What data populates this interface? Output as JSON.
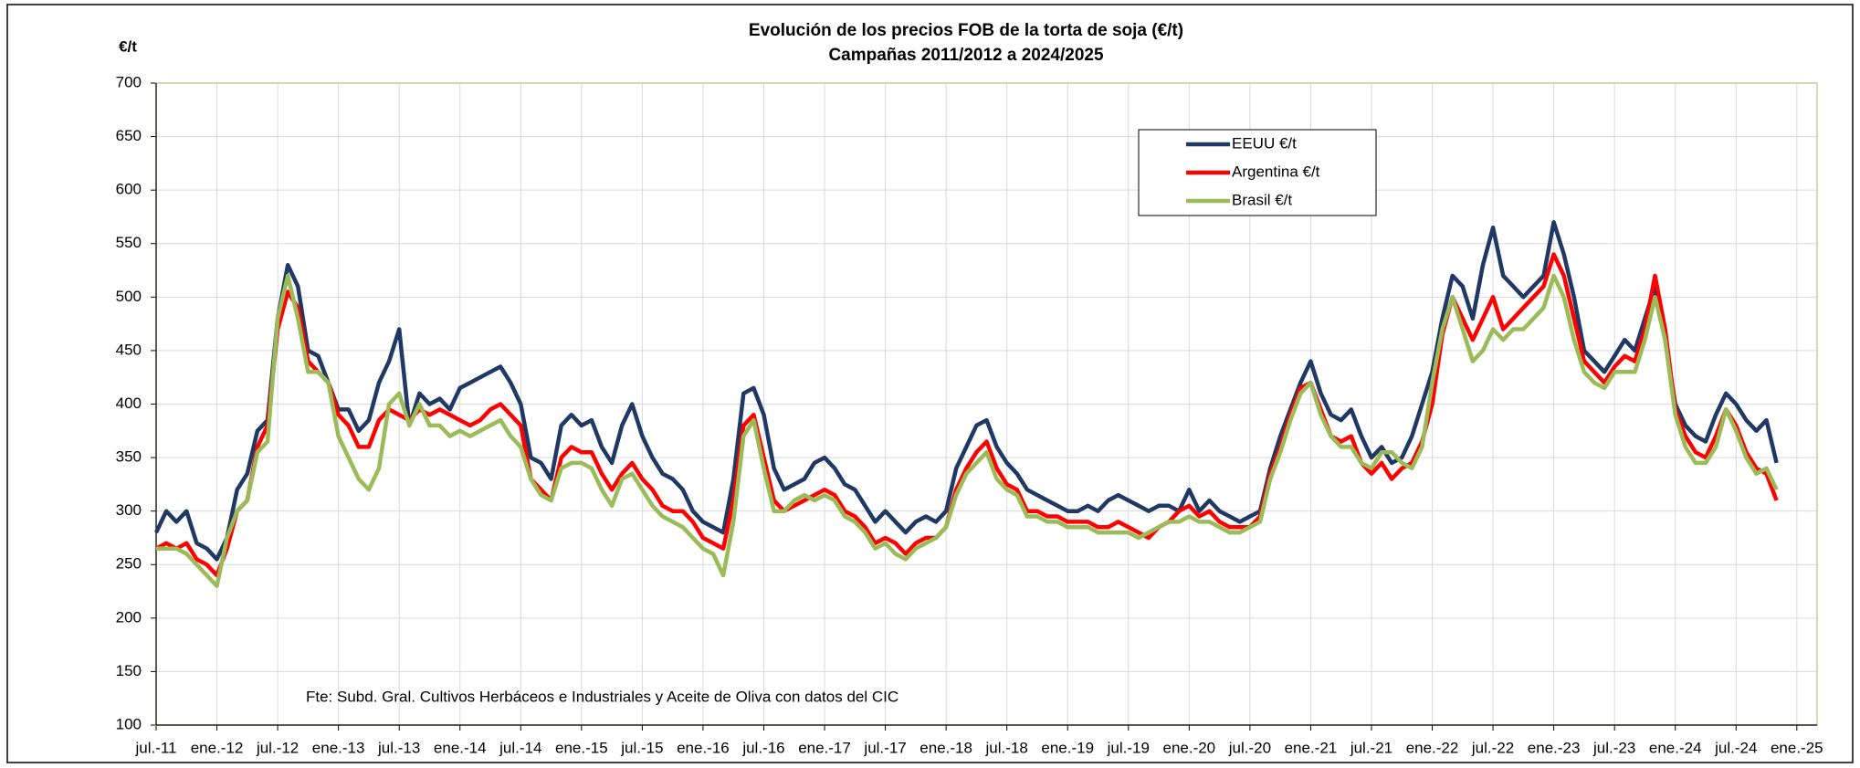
{
  "chart_data": {
    "type": "line",
    "title": "Evolución de los precios FOB de la torta de soja (€/t)",
    "subtitle": "Campañas 2011/2012 a 2024/2025",
    "ylabel": "€/t",
    "annotation": "Fte: Subd. Gral. Cultivos Herbáceos e Industriales y Aceite de Oliva con datos del CIC",
    "x": [
      "2011-07",
      "2011-08",
      "2011-09",
      "2011-10",
      "2011-11",
      "2011-12",
      "2012-01",
      "2012-02",
      "2012-03",
      "2012-04",
      "2012-05",
      "2012-06",
      "2012-07",
      "2012-08",
      "2012-09",
      "2012-10",
      "2012-11",
      "2012-12",
      "2013-01",
      "2013-02",
      "2013-03",
      "2013-04",
      "2013-05",
      "2013-06",
      "2013-07",
      "2013-08",
      "2013-09",
      "2013-10",
      "2013-11",
      "2013-12",
      "2014-01",
      "2014-02",
      "2014-03",
      "2014-04",
      "2014-05",
      "2014-06",
      "2014-07",
      "2014-08",
      "2014-09",
      "2014-10",
      "2014-11",
      "2014-12",
      "2015-01",
      "2015-02",
      "2015-03",
      "2015-04",
      "2015-05",
      "2015-06",
      "2015-07",
      "2015-08",
      "2015-09",
      "2015-10",
      "2015-11",
      "2015-12",
      "2016-01",
      "2016-02",
      "2016-03",
      "2016-04",
      "2016-05",
      "2016-06",
      "2016-07",
      "2016-08",
      "2016-09",
      "2016-10",
      "2016-11",
      "2016-12",
      "2017-01",
      "2017-02",
      "2017-03",
      "2017-04",
      "2017-05",
      "2017-06",
      "2017-07",
      "2017-08",
      "2017-09",
      "2017-10",
      "2017-11",
      "2017-12",
      "2018-01",
      "2018-02",
      "2018-03",
      "2018-04",
      "2018-05",
      "2018-06",
      "2018-07",
      "2018-08",
      "2018-09",
      "2018-10",
      "2018-11",
      "2018-12",
      "2019-01",
      "2019-02",
      "2019-03",
      "2019-04",
      "2019-05",
      "2019-06",
      "2019-07",
      "2019-08",
      "2019-09",
      "2019-10",
      "2019-11",
      "2019-12",
      "2020-01",
      "2020-02",
      "2020-03",
      "2020-04",
      "2020-05",
      "2020-06",
      "2020-07",
      "2020-08",
      "2020-09",
      "2020-10",
      "2020-11",
      "2020-12",
      "2021-01",
      "2021-02",
      "2021-03",
      "2021-04",
      "2021-05",
      "2021-06",
      "2021-07",
      "2021-08",
      "2021-09",
      "2021-10",
      "2021-11",
      "2021-12",
      "2022-01",
      "2022-02",
      "2022-03",
      "2022-04",
      "2022-05",
      "2022-06",
      "2022-07",
      "2022-08",
      "2022-09",
      "2022-10",
      "2022-11",
      "2022-12",
      "2023-01",
      "2023-02",
      "2023-03",
      "2023-04",
      "2023-05",
      "2023-06",
      "2023-07",
      "2023-08",
      "2023-09",
      "2023-10",
      "2023-11",
      "2023-12",
      "2024-01",
      "2024-02",
      "2024-03",
      "2024-04",
      "2024-05",
      "2024-06",
      "2024-07",
      "2024-08",
      "2024-09",
      "2024-10",
      "2024-11"
    ],
    "series": [
      {
        "name": "EEUU €/t",
        "color": "#1f3864",
        "values": [
          280,
          300,
          290,
          300,
          270,
          265,
          255,
          275,
          320,
          335,
          375,
          385,
          480,
          530,
          510,
          450,
          445,
          420,
          395,
          395,
          375,
          385,
          420,
          440,
          470,
          380,
          410,
          400,
          405,
          395,
          415,
          420,
          425,
          430,
          435,
          420,
          400,
          350,
          345,
          330,
          380,
          390,
          380,
          385,
          360,
          345,
          380,
          400,
          370,
          350,
          335,
          330,
          320,
          300,
          290,
          285,
          280,
          330,
          410,
          415,
          390,
          340,
          320,
          325,
          330,
          345,
          350,
          340,
          325,
          320,
          305,
          290,
          300,
          290,
          280,
          290,
          295,
          290,
          300,
          340,
          360,
          380,
          385,
          360,
          345,
          335,
          320,
          315,
          310,
          305,
          300,
          300,
          305,
          300,
          310,
          315,
          310,
          305,
          300,
          305,
          305,
          300,
          320,
          300,
          310,
          300,
          295,
          290,
          295,
          300,
          340,
          370,
          395,
          420,
          440,
          410,
          390,
          385,
          395,
          370,
          350,
          360,
          345,
          350,
          370,
          400,
          430,
          480,
          520,
          510,
          480,
          530,
          565,
          520,
          510,
          500,
          510,
          520,
          570,
          540,
          500,
          450,
          440,
          430,
          445,
          460,
          450,
          480,
          510,
          460,
          400,
          380,
          370,
          365,
          390,
          410,
          400,
          385,
          375,
          385,
          345
        ]
      },
      {
        "name": "Argentina €/t",
        "color": "#ff0000",
        "values": [
          265,
          270,
          265,
          270,
          255,
          250,
          240,
          265,
          300,
          310,
          360,
          380,
          470,
          505,
          490,
          440,
          430,
          420,
          390,
          380,
          360,
          360,
          385,
          395,
          390,
          385,
          395,
          390,
          395,
          390,
          385,
          380,
          385,
          395,
          400,
          390,
          380,
          330,
          320,
          310,
          350,
          360,
          355,
          355,
          335,
          320,
          335,
          345,
          330,
          320,
          305,
          300,
          300,
          290,
          275,
          270,
          265,
          310,
          380,
          390,
          350,
          310,
          300,
          305,
          310,
          315,
          320,
          315,
          300,
          295,
          285,
          270,
          275,
          270,
          260,
          270,
          275,
          275,
          285,
          320,
          340,
          355,
          365,
          340,
          325,
          320,
          300,
          300,
          295,
          295,
          290,
          290,
          290,
          285,
          285,
          290,
          285,
          280,
          275,
          285,
          290,
          300,
          305,
          295,
          300,
          290,
          285,
          285,
          285,
          295,
          335,
          360,
          390,
          415,
          420,
          395,
          370,
          365,
          370,
          345,
          335,
          345,
          330,
          340,
          345,
          365,
          400,
          465,
          500,
          480,
          460,
          480,
          500,
          470,
          480,
          490,
          500,
          510,
          540,
          520,
          480,
          440,
          430,
          420,
          435,
          445,
          440,
          470,
          520,
          470,
          395,
          370,
          355,
          350,
          370,
          395,
          380,
          355,
          340,
          335,
          310
        ]
      },
      {
        "name": "Brasil €/t",
        "color": "#9bbb59",
        "values": [
          265,
          265,
          265,
          260,
          250,
          240,
          230,
          275,
          300,
          310,
          355,
          365,
          480,
          520,
          480,
          430,
          430,
          420,
          370,
          350,
          330,
          320,
          340,
          400,
          410,
          380,
          400,
          380,
          380,
          370,
          375,
          370,
          375,
          380,
          385,
          370,
          360,
          330,
          315,
          310,
          340,
          345,
          345,
          340,
          320,
          305,
          330,
          335,
          320,
          305,
          295,
          290,
          285,
          275,
          265,
          260,
          240,
          290,
          370,
          385,
          340,
          300,
          300,
          310,
          315,
          310,
          315,
          310,
          295,
          290,
          280,
          265,
          270,
          260,
          255,
          265,
          270,
          275,
          285,
          315,
          335,
          345,
          355,
          330,
          320,
          315,
          295,
          295,
          290,
          290,
          285,
          285,
          285,
          280,
          280,
          280,
          280,
          275,
          280,
          285,
          290,
          290,
          295,
          290,
          290,
          285,
          280,
          280,
          285,
          290,
          330,
          355,
          385,
          410,
          420,
          390,
          370,
          360,
          360,
          345,
          340,
          355,
          355,
          345,
          340,
          360,
          420,
          470,
          500,
          470,
          440,
          450,
          470,
          460,
          470,
          470,
          480,
          490,
          520,
          500,
          460,
          430,
          420,
          415,
          430,
          430,
          430,
          460,
          500,
          460,
          390,
          360,
          345,
          345,
          360,
          395,
          375,
          350,
          335,
          340,
          320
        ]
      }
    ],
    "xlim": [
      "2011-07",
      "2025-03"
    ],
    "xticks": [
      {
        "value": "2011-07",
        "label": "jul.-11"
      },
      {
        "value": "2012-01",
        "label": "ene.-12"
      },
      {
        "value": "2012-07",
        "label": "jul.-12"
      },
      {
        "value": "2013-01",
        "label": "ene.-13"
      },
      {
        "value": "2013-07",
        "label": "jul.-13"
      },
      {
        "value": "2014-01",
        "label": "ene.-14"
      },
      {
        "value": "2014-07",
        "label": "jul.-14"
      },
      {
        "value": "2015-01",
        "label": "ene.-15"
      },
      {
        "value": "2015-07",
        "label": "jul.-15"
      },
      {
        "value": "2016-01",
        "label": "ene.-16"
      },
      {
        "value": "2016-07",
        "label": "jul.-16"
      },
      {
        "value": "2017-01",
        "label": "ene.-17"
      },
      {
        "value": "2017-07",
        "label": "jul.-17"
      },
      {
        "value": "2018-01",
        "label": "ene.-18"
      },
      {
        "value": "2018-07",
        "label": "jul.-18"
      },
      {
        "value": "2019-01",
        "label": "ene.-19"
      },
      {
        "value": "2019-07",
        "label": "jul.-19"
      },
      {
        "value": "2020-01",
        "label": "ene.-20"
      },
      {
        "value": "2020-07",
        "label": "jul.-20"
      },
      {
        "value": "2021-01",
        "label": "ene.-21"
      },
      {
        "value": "2021-07",
        "label": "jul.-21"
      },
      {
        "value": "2022-01",
        "label": "ene.-22"
      },
      {
        "value": "2022-07",
        "label": "jul.-22"
      },
      {
        "value": "2023-01",
        "label": "ene.-23"
      },
      {
        "value": "2023-07",
        "label": "jul.-23"
      },
      {
        "value": "2024-01",
        "label": "ene.-24"
      },
      {
        "value": "2024-07",
        "label": "jul.-24"
      },
      {
        "value": "2025-01",
        "label": "ene.-25"
      }
    ],
    "ylim": [
      100,
      700
    ],
    "yticks": [
      100,
      150,
      200,
      250,
      300,
      350,
      400,
      450,
      500,
      550,
      600,
      650,
      700
    ],
    "grid": true,
    "legend": "upper right"
  }
}
